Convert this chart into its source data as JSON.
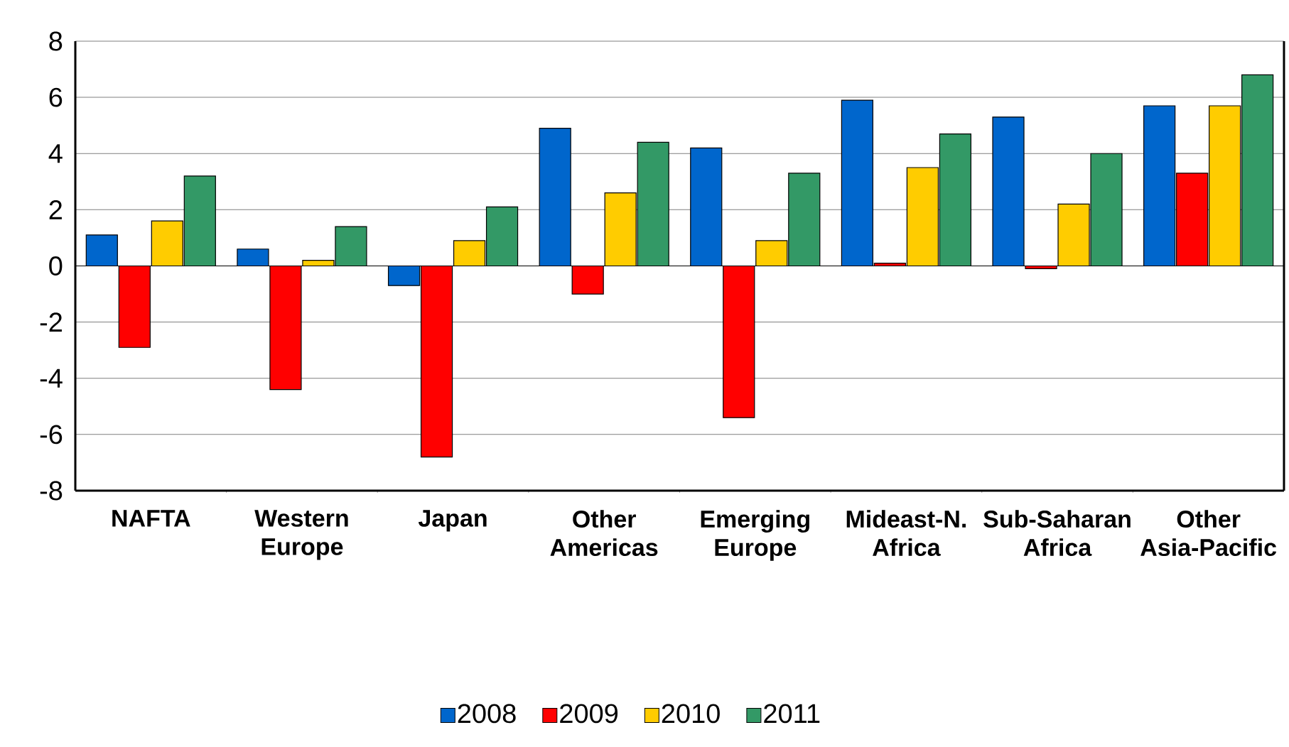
{
  "chart_data": {
    "type": "bar",
    "categories": [
      "NAFTA",
      "Western Europe",
      "Japan",
      "Other Americas",
      "Emerging Europe",
      "Mideast-N. Africa",
      "Sub-Saharan Africa",
      "Other Asia-Pacific"
    ],
    "series": [
      {
        "name": "2008",
        "color": "#0066cc",
        "values": [
          1.1,
          0.6,
          -0.7,
          4.9,
          4.2,
          5.9,
          5.3,
          5.7
        ]
      },
      {
        "name": "2009",
        "color": "#ff0000",
        "values": [
          -2.9,
          -4.4,
          -6.8,
          -1.0,
          -5.4,
          0.1,
          -0.1,
          3.3
        ]
      },
      {
        "name": "2010",
        "color": "#ffcc00",
        "values": [
          1.6,
          0.2,
          0.9,
          2.6,
          0.9,
          3.5,
          2.2,
          5.7
        ]
      },
      {
        "name": "2011",
        "color": "#339966",
        "values": [
          3.2,
          1.4,
          2.1,
          4.4,
          3.3,
          4.7,
          4.0,
          6.8
        ]
      }
    ],
    "ylim": [
      -8,
      8
    ],
    "yticks": [
      -8,
      -6,
      -4,
      -2,
      0,
      2,
      4,
      6,
      8
    ],
    "grid": "y",
    "legend": "bottom"
  }
}
